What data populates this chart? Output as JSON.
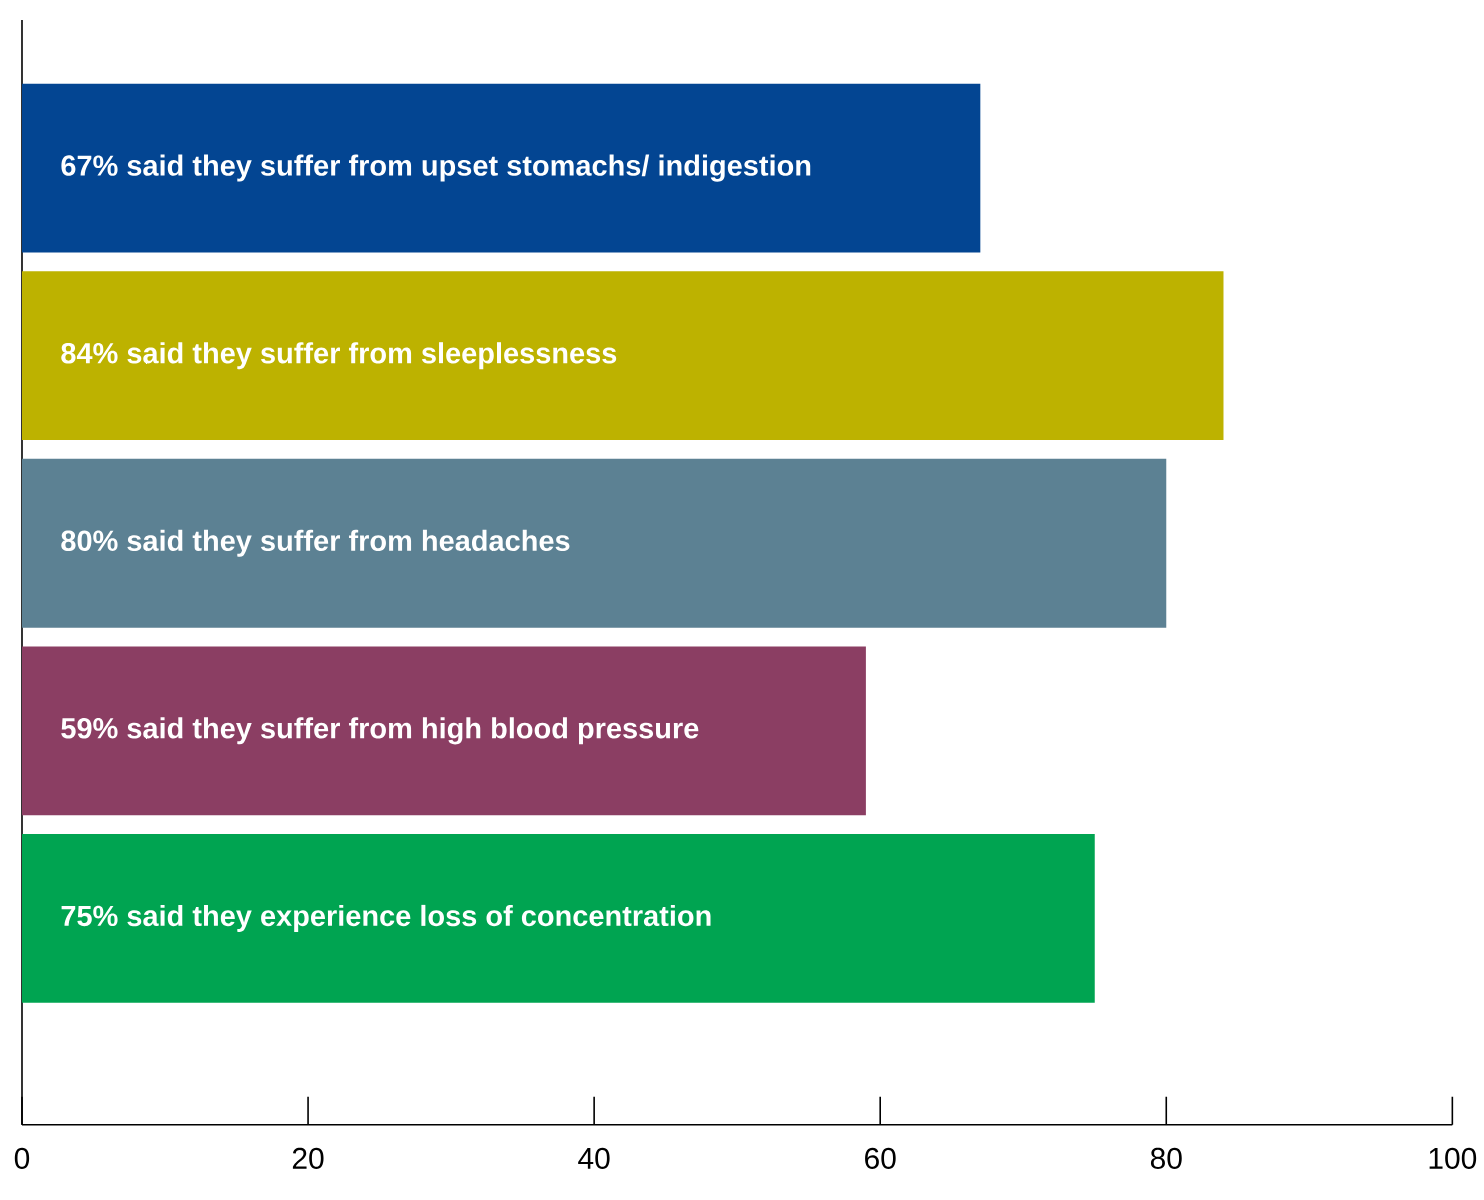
{
  "chart_data": {
    "type": "bar",
    "orientation": "horizontal",
    "categories": [
      "67% said they suffer from upset stomachs/ indigestion",
      "84% said they suffer from sleeplessness",
      "80% said they suffer from headaches",
      "59% said they suffer from high blood pressure",
      "75% said they experience loss of concentration"
    ],
    "values": [
      67,
      84,
      80,
      59,
      75
    ],
    "colors": [
      "#034592",
      "#bdb200",
      "#5c8193",
      "#8b3e63",
      "#00a451"
    ],
    "xlim": [
      0,
      100
    ],
    "xticks": [
      0,
      20,
      40,
      60,
      80,
      100
    ],
    "grid": false
  }
}
